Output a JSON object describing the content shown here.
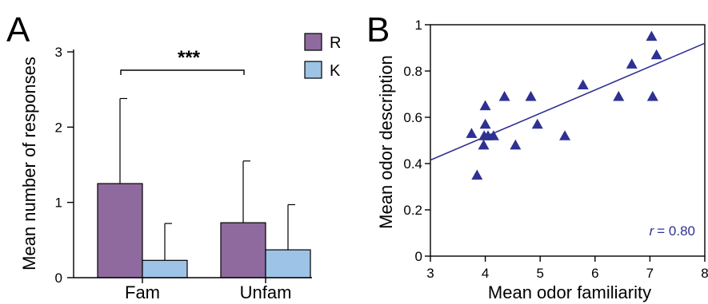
{
  "chart_data": [
    {
      "panel": "A",
      "type": "bar",
      "categories": [
        "Fam",
        "Unfam"
      ],
      "series": [
        {
          "name": "R",
          "values": [
            1.25,
            0.73
          ],
          "error": [
            1.13,
            0.82
          ],
          "color": "#8e6a9e"
        },
        {
          "name": "K",
          "values": [
            0.23,
            0.37
          ],
          "error": [
            0.49,
            0.6
          ],
          "color": "#9dc3e6"
        }
      ],
      "ylabel": "Mean number of responses",
      "ylim": [
        0,
        3
      ],
      "yticks": [
        "0",
        "1",
        "2",
        "3"
      ],
      "legend": "top-right",
      "annotation": "***"
    },
    {
      "panel": "B",
      "type": "scatter",
      "x": [
        3.75,
        3.85,
        3.97,
        3.98,
        4.0,
        4.0,
        4.05,
        4.15,
        4.35,
        4.55,
        4.83,
        4.95,
        5.45,
        5.78,
        6.43,
        6.67,
        7.03,
        7.05,
        7.12
      ],
      "y": [
        0.53,
        0.35,
        0.48,
        0.52,
        0.57,
        0.65,
        0.52,
        0.52,
        0.69,
        0.48,
        0.69,
        0.57,
        0.52,
        0.74,
        0.69,
        0.83,
        0.95,
        0.69,
        0.87
      ],
      "xlabel": "Mean odor familiarity",
      "ylabel": "Mean odor description",
      "xlim": [
        3,
        8
      ],
      "ylim": [
        0,
        1
      ],
      "xticks": [
        "3",
        "4",
        "5",
        "6",
        "7",
        "8"
      ],
      "yticks": [
        "0",
        "0.2",
        "0.4",
        "0.6",
        "0.8",
        "1"
      ],
      "fit_line": {
        "y_at_xmin": 0.415,
        "y_at_xmax": 0.92
      },
      "annotation": {
        "r_symbol": "r",
        "r_value": "= 0.80"
      },
      "color": "#2e3192"
    }
  ]
}
